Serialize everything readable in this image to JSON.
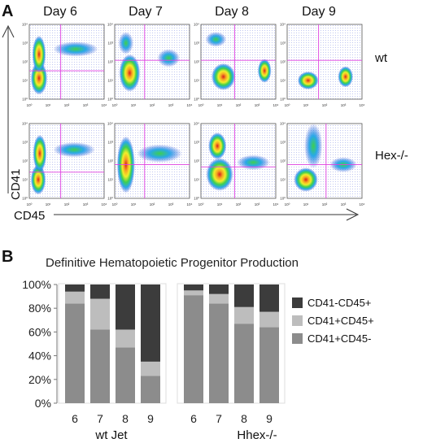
{
  "panel_a": {
    "label": "A",
    "days": [
      "Day 6",
      "Day 7",
      "Day 8",
      "Day 9"
    ],
    "rows": [
      "wt",
      "Hex-/-"
    ],
    "y_axis_label": "CD41",
    "x_axis_label": "CD45",
    "tick_labels": [
      "10⁰",
      "10¹",
      "10²",
      "10³",
      "10⁴"
    ],
    "gate_color": "#e040e0"
  },
  "panel_b": {
    "label": "B",
    "title": "Definitive Hematopoietic Progenitor Production",
    "y_ticks": [
      "0%",
      "20%",
      "40%",
      "60%",
      "80%",
      "100%"
    ],
    "legend": [
      {
        "name": "CD41-CD45+",
        "color": "#3c3c3c"
      },
      {
        "name": "CD41+CD45+",
        "color": "#bdbdbd"
      },
      {
        "name": "CD41+CD45-",
        "color": "#8c8c8c"
      }
    ],
    "groups": [
      {
        "name": "wt Jet",
        "categories": [
          "6",
          "7",
          "8",
          "9"
        ]
      },
      {
        "name": "Hhex-/-",
        "categories": [
          "6",
          "7",
          "8",
          "9"
        ]
      }
    ]
  },
  "chart_data": {
    "type": "bar",
    "stacked": true,
    "title": "Definitive Hematopoietic Progenitor Production",
    "ylim": [
      0,
      100
    ],
    "groups": [
      "wt Jet",
      "Hhex-/-"
    ],
    "categories": [
      "6",
      "7",
      "8",
      "9",
      "6",
      "7",
      "8",
      "9"
    ],
    "series": [
      {
        "name": "CD41+CD45-",
        "color": "#8c8c8c",
        "values": [
          84,
          62,
          47,
          23,
          91,
          84,
          67,
          64
        ]
      },
      {
        "name": "CD41+CD45+",
        "color": "#bdbdbd",
        "values": [
          10,
          26,
          15,
          12,
          4,
          8,
          14,
          13
        ]
      },
      {
        "name": "CD41-CD45+",
        "color": "#3c3c3c",
        "values": [
          6,
          12,
          38,
          65,
          5,
          8,
          19,
          23
        ]
      }
    ]
  }
}
